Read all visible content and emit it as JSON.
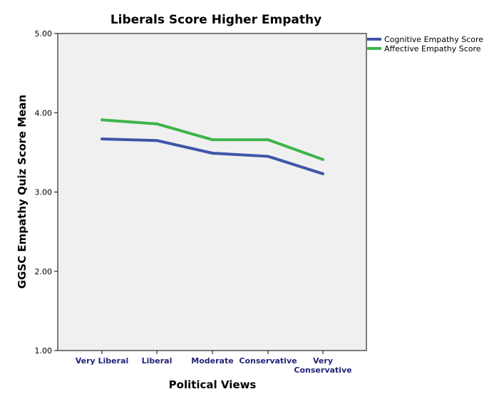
{
  "chart_data": {
    "type": "line",
    "title": "Liberals Score Higher Empathy",
    "xlabel": "Political Views",
    "ylabel": "GGSC Empathy Quiz Score Mean",
    "categories": [
      "Very Liberal",
      "Liberal",
      "Moderate",
      "Conservative",
      "Very Conservative"
    ],
    "ylim": [
      1.0,
      5.0
    ],
    "yticks": [
      "1.00",
      "2.00",
      "3.00",
      "4.00",
      "5.00"
    ],
    "grid": false,
    "legend_position": "top-right",
    "series": [
      {
        "name": "Cognitive Empathy Score",
        "color": "#3F56A8",
        "values": [
          3.67,
          3.65,
          3.49,
          3.45,
          3.23
        ]
      },
      {
        "name": "Affective Empathy Score",
        "color": "#3DB54A",
        "values": [
          3.91,
          3.86,
          3.66,
          3.66,
          3.41
        ]
      }
    ],
    "colors": {
      "plot_background": "#F0F0F0",
      "axis": "#000000",
      "category_label": "#23237A"
    }
  }
}
